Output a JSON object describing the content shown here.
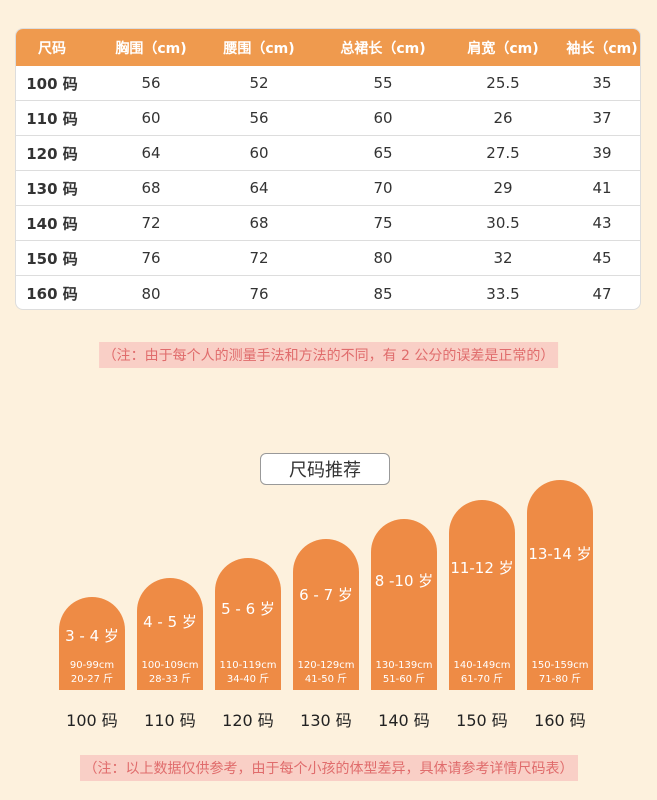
{
  "table": {
    "header": [
      "尺码",
      "胸围（cm)",
      "腰围（cm)",
      "总裙长（cm)",
      "肩宽（cm)",
      "袖长（cm)"
    ],
    "rows": [
      [
        "100 码",
        "56",
        "52",
        "55",
        "25.5",
        "35"
      ],
      [
        "110 码",
        "60",
        "56",
        "60",
        "26",
        "37"
      ],
      [
        "120 码",
        "64",
        "60",
        "65",
        "27.5",
        "39"
      ],
      [
        "130 码",
        "68",
        "64",
        "70",
        "29",
        "41"
      ],
      [
        "140 码",
        "72",
        "68",
        "75",
        "30.5",
        "43"
      ],
      [
        "150 码",
        "76",
        "72",
        "80",
        "32",
        "45"
      ],
      [
        "160 码",
        "80",
        "76",
        "85",
        "33.5",
        "47"
      ]
    ]
  },
  "note_top": "（注：由于每个人的测量手法和方法的不同，有 2 公分的误差是正常的）",
  "recommend": {
    "title": "尺码推荐",
    "items": [
      {
        "age": "3 - 4 岁",
        "height": "90-99cm",
        "weight": "20-27 斤",
        "size": "100 码"
      },
      {
        "age": "4 - 5 岁",
        "height": "100-109cm",
        "weight": "28-33 斤",
        "size": "110 码"
      },
      {
        "age": "5 - 6 岁",
        "height": "110-119cm",
        "weight": "34-40 斤",
        "size": "120 码"
      },
      {
        "age": "6 - 7 岁",
        "height": "120-129cm",
        "weight": "41-50 斤",
        "size": "130 码"
      },
      {
        "age": "8 -10 岁",
        "height": "130-139cm",
        "weight": "51-60 斤",
        "size": "140 码"
      },
      {
        "age": "11-12 岁",
        "height": "140-149cm",
        "weight": "61-70 斤",
        "size": "150 码"
      },
      {
        "age": "13-14 岁",
        "height": "150-159cm",
        "weight": "71-80 斤",
        "size": "160 码"
      }
    ]
  },
  "note_bottom": "（注：以上数据仅供参考，由于每个小孩的体型差异，具体请参考详情尺码表）"
}
